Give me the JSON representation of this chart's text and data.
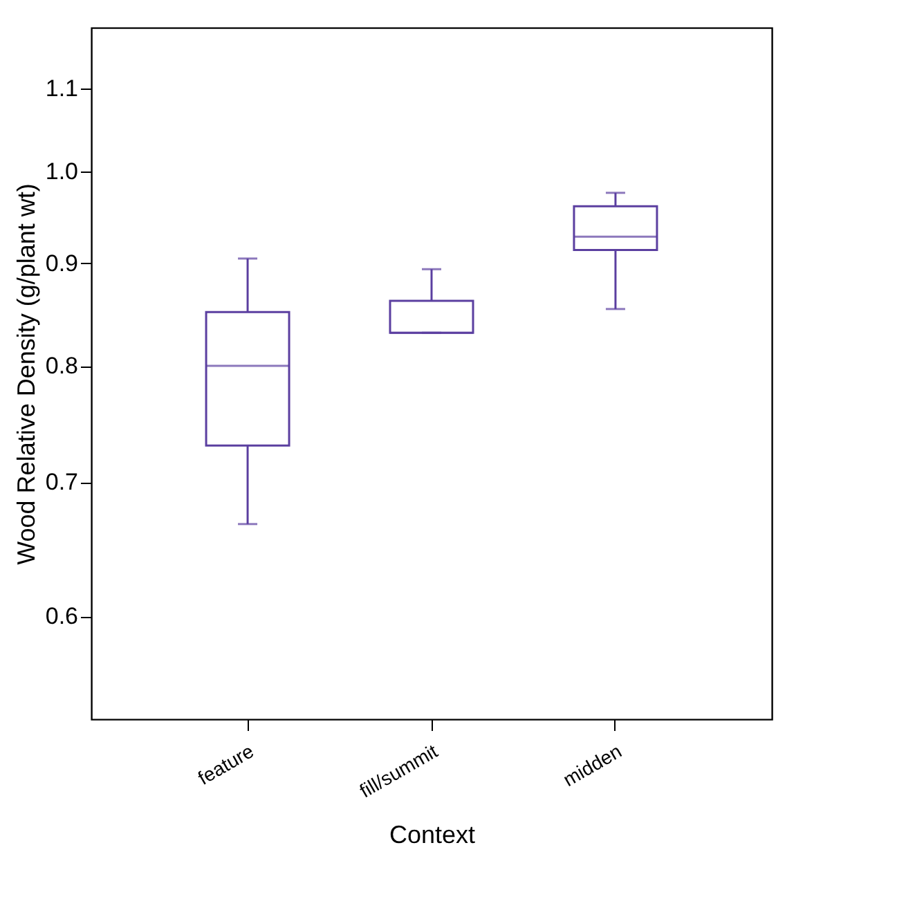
{
  "chart_data": {
    "type": "box",
    "xlabel": "Context",
    "ylabel": "Wood Relative Density (g/plant wt)",
    "categories": [
      "feature",
      "fill/summit",
      "midden"
    ],
    "log": true,
    "ylim": [
      0.533,
      1.18
    ],
    "yticks": [
      0.6,
      0.7,
      0.8,
      0.9,
      {
        "value": 1,
        "label": "1.0"
      },
      1.1
    ],
    "grid": false,
    "series": [
      {
        "color": "#5b3fa0",
        "boxes": [
          {
            "low": 0.667,
            "q1": 0.73,
            "median": 0.8,
            "q3": 0.851,
            "high": 0.905
          },
          {
            "low": 0.831,
            "q1": 0.831,
            "median": 0.831,
            "q3": 0.862,
            "high": 0.894
          },
          {
            "low": 0.854,
            "q1": 0.914,
            "median": 0.928,
            "q3": 0.961,
            "high": 0.976
          }
        ]
      }
    ]
  }
}
